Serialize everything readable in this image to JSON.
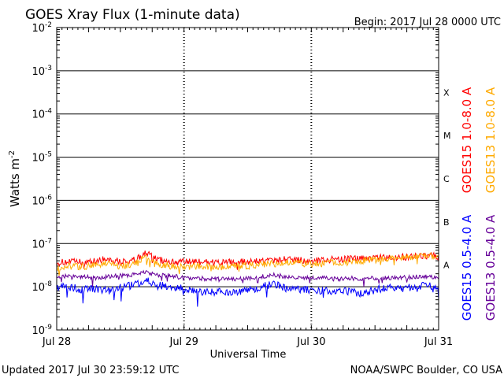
{
  "chart_data": {
    "type": "line",
    "title": "GOES Xray Flux (1-minute data)",
    "begin_label": "Begin:  2017 Jul 28 0000 UTC",
    "xlabel": "Universal Time",
    "ylabel_base": "Watts m",
    "ylabel_exp": "-2",
    "y_scale": "log",
    "ylim": [
      1e-09,
      0.01
    ],
    "grid": true,
    "x_ticks": [
      "Jul 28",
      "Jul 29",
      "Jul 30",
      "Jul 31"
    ],
    "y_ticks": [
      {
        "base": "10",
        "exp": "-2",
        "value": 0.01
      },
      {
        "base": "10",
        "exp": "-3",
        "value": 0.001
      },
      {
        "base": "10",
        "exp": "-4",
        "value": 0.0001
      },
      {
        "base": "10",
        "exp": "-5",
        "value": 1e-05
      },
      {
        "base": "10",
        "exp": "-6",
        "value": 1e-06
      },
      {
        "base": "10",
        "exp": "-7",
        "value": 1e-07
      },
      {
        "base": "10",
        "exp": "-8",
        "value": 1e-08
      },
      {
        "base": "10",
        "exp": "-9",
        "value": 1e-09
      }
    ],
    "flare_classes": [
      {
        "label": "X",
        "value": 0.0001
      },
      {
        "label": "M",
        "value": 1e-05
      },
      {
        "label": "C",
        "value": 1e-06
      },
      {
        "label": "B",
        "value": 1e-07
      },
      {
        "label": "A",
        "value": 1e-08
      }
    ],
    "x_days": [
      0,
      0.1,
      0.2,
      0.3,
      0.4,
      0.5,
      0.6,
      0.7,
      0.8,
      0.9,
      1.0,
      1.1,
      1.2,
      1.3,
      1.4,
      1.5,
      1.6,
      1.7,
      1.8,
      1.9,
      2.0,
      2.1,
      2.2,
      2.3,
      2.4,
      2.5,
      2.6,
      2.7,
      2.8,
      2.9,
      3.0
    ],
    "series": [
      {
        "name": "GOES15 1.0-8.0 A",
        "color": "#ff0000",
        "legend_side": "left",
        "values": [
          3.6e-08,
          3.8e-08,
          3.7e-08,
          3.9e-08,
          4.5e-08,
          3.8e-08,
          4e-08,
          6e-08,
          4.2e-08,
          3.8e-08,
          3.7e-08,
          3.8e-08,
          3.7e-08,
          3.6e-08,
          3.7e-08,
          3.8e-08,
          4e-08,
          4.1e-08,
          4.3e-08,
          4.2e-08,
          4.1e-08,
          4.2e-08,
          4.3e-08,
          4.4e-08,
          4.5e-08,
          4.6e-08,
          4.7e-08,
          4.9e-08,
          5e-08,
          5.3e-08,
          5e-08
        ]
      },
      {
        "name": "GOES13 1.0-8.0 A",
        "color": "#ffaa00",
        "legend_side": "right",
        "values": [
          2.8e-08,
          3e-08,
          2.9e-08,
          3.1e-08,
          3.5e-08,
          3e-08,
          3.2e-08,
          5e-08,
          3.3e-08,
          3e-08,
          2.9e-08,
          3e-08,
          2.9e-08,
          2.9e-08,
          3e-08,
          3.1e-08,
          3.3e-08,
          3.4e-08,
          3.6e-08,
          3.5e-08,
          3.4e-08,
          3.5e-08,
          3.7e-08,
          3.8e-08,
          4e-08,
          4.2e-08,
          4.4e-08,
          4.6e-08,
          4.8e-08,
          5.2e-08,
          4.9e-08
        ]
      },
      {
        "name": "GOES15 0.5-4.0 A",
        "color": "#0000ff",
        "legend_side": "left",
        "values": [
          1e-08,
          1e-08,
          8.5e-09,
          9e-09,
          8e-09,
          9.5e-09,
          1.1e-08,
          1.4e-08,
          1.1e-08,
          1e-08,
          9e-09,
          8e-09,
          7.5e-09,
          7.8e-09,
          7e-09,
          8.5e-09,
          9.5e-09,
          1.2e-08,
          9e-09,
          8.5e-09,
          8.5e-09,
          8e-09,
          8.2e-09,
          7.5e-09,
          7e-09,
          8.5e-09,
          9.5e-09,
          9e-09,
          1e-08,
          1.1e-08,
          9.5e-09
        ]
      },
      {
        "name": "GOES13 0.5-4.0 A",
        "color": "#660099",
        "legend_side": "right",
        "values": [
          1.7e-08,
          1.8e-08,
          1.7e-08,
          1.6e-08,
          1.7e-08,
          1.8e-08,
          1.9e-08,
          2.2e-08,
          1.9e-08,
          1.8e-08,
          1.6e-08,
          1.6e-08,
          1.5e-08,
          1.6e-08,
          1.5e-08,
          1.6e-08,
          1.7e-08,
          1.9e-08,
          1.7e-08,
          1.6e-08,
          1.6e-08,
          1.6e-08,
          1.5e-08,
          1.6e-08,
          1.5e-08,
          1.6e-08,
          1.6e-08,
          1.6e-08,
          1.7e-08,
          1.7e-08,
          1.6e-08
        ]
      }
    ]
  },
  "footer": {
    "updated": "Updated 2017 Jul 30 23:59:12 UTC",
    "credit": "NOAA/SWPC Boulder, CO USA"
  }
}
